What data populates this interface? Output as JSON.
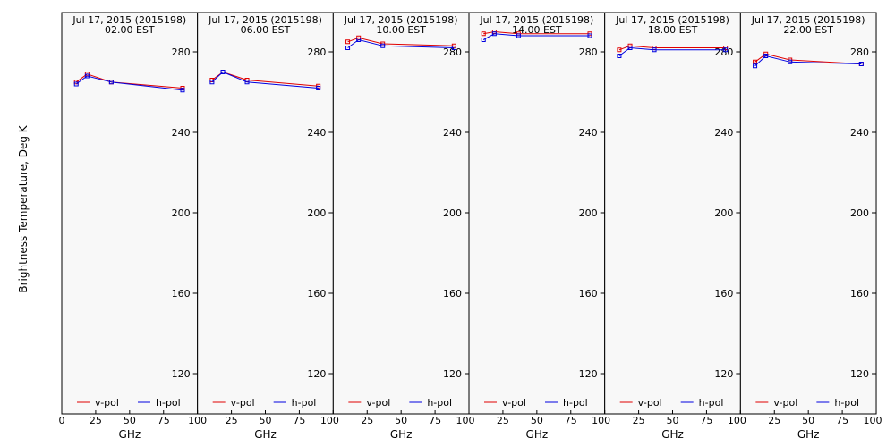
{
  "chart_data": {
    "type": "line",
    "ylabel": "Brightness Temperature, Deg K",
    "xlabel": "GHz",
    "xlim": [
      0,
      100
    ],
    "ylim": [
      100,
      295
    ],
    "xticks": [
      "0",
      "25",
      "50",
      "75",
      "100"
    ],
    "yticks": [
      "120",
      "160",
      "200",
      "240",
      "280"
    ],
    "grid": false,
    "legend_position": "bottom",
    "series_colors": {
      "v-pol": "#e00000",
      "h-pol": "#0000e0"
    },
    "x": [
      10.7,
      18.7,
      36.5,
      89.0
    ],
    "panels": [
      {
        "title_line1": "Jul 17, 2015 (2015198)",
        "title_line2": "02.00 EST",
        "series": [
          {
            "name": "v-pol",
            "values": [
              265,
              269,
              265,
              262
            ]
          },
          {
            "name": "h-pol",
            "values": [
              264,
              268,
              265,
              261
            ]
          }
        ]
      },
      {
        "title_line1": "Jul 17, 2015 (2015198)",
        "title_line2": "06.00 EST",
        "series": [
          {
            "name": "v-pol",
            "values": [
              266,
              270,
              266,
              263
            ]
          },
          {
            "name": "h-pol",
            "values": [
              265,
              270,
              265,
              262
            ]
          }
        ]
      },
      {
        "title_line1": "Jul 17, 2015 (2015198)",
        "title_line2": "10.00 EST",
        "series": [
          {
            "name": "v-pol",
            "values": [
              285,
              287,
              284,
              283
            ]
          },
          {
            "name": "h-pol",
            "values": [
              282,
              286,
              283,
              282
            ]
          }
        ]
      },
      {
        "title_line1": "Jul 17, 2015 (2015198)",
        "title_line2": "14.00 EST",
        "series": [
          {
            "name": "v-pol",
            "values": [
              289,
              290,
              289,
              289
            ]
          },
          {
            "name": "h-pol",
            "values": [
              286,
              289,
              288,
              288
            ]
          }
        ]
      },
      {
        "title_line1": "Jul 17, 2015 (2015198)",
        "title_line2": "18.00 EST",
        "series": [
          {
            "name": "v-pol",
            "values": [
              281,
              283,
              282,
              282
            ]
          },
          {
            "name": "h-pol",
            "values": [
              278,
              282,
              281,
              281
            ]
          }
        ]
      },
      {
        "title_line1": "Jul 17, 2015 (2015198)",
        "title_line2": "22.00 EST",
        "series": [
          {
            "name": "v-pol",
            "values": [
              275,
              279,
              276,
              274
            ]
          },
          {
            "name": "h-pol",
            "values": [
              273,
              278,
              275,
              274
            ]
          }
        ]
      }
    ]
  }
}
